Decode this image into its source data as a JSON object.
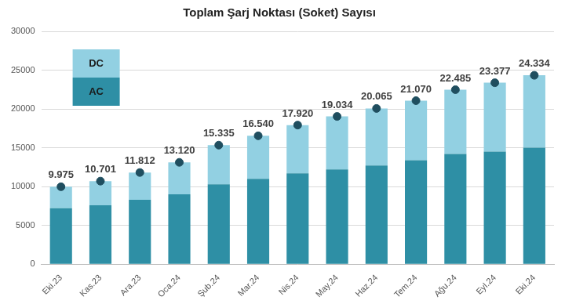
{
  "chart_data": {
    "type": "bar",
    "title": "Toplam Şarj Noktası (Soket) Sayısı",
    "categories": [
      "Eki.23",
      "Kas.23",
      "Ara.23",
      "Oca.24",
      "Şub.24",
      "Mar.24",
      "Nis.24",
      "May.24",
      "Haz.24",
      "Tem.24",
      "Ağu.24",
      "Eyl.24",
      "Eki.24"
    ],
    "series": [
      {
        "name": "AC",
        "color": "#2e8fa5",
        "values": [
          7200,
          7600,
          8300,
          9000,
          10300,
          11000,
          11700,
          12200,
          12700,
          13400,
          14200,
          14500,
          15000
        ]
      },
      {
        "name": "DC",
        "color": "#92d0e2",
        "values": [
          2775,
          3101,
          3512,
          4120,
          5035,
          5540,
          6220,
          6834,
          7365,
          7670,
          8285,
          8877,
          9334
        ]
      }
    ],
    "totals": {
      "values": [
        9975,
        10701,
        11812,
        13120,
        15335,
        16540,
        17920,
        19034,
        20065,
        21070,
        22485,
        23377,
        24334
      ],
      "value_labels": [
        "9.975",
        "10.701",
        "11.812",
        "13.120",
        "15.335",
        "16.540",
        "17.920",
        "19.034",
        "20.065",
        "21.070",
        "22.485",
        "23.377",
        "24.334"
      ],
      "color": "#1f4e5f",
      "marker": "circle"
    },
    "stacked": true,
    "data_labels": true,
    "legend": "upper left",
    "ylim": [
      0,
      30000
    ],
    "yticks": [
      0,
      5000,
      10000,
      15000,
      20000,
      25000,
      30000
    ],
    "grid": true
  }
}
